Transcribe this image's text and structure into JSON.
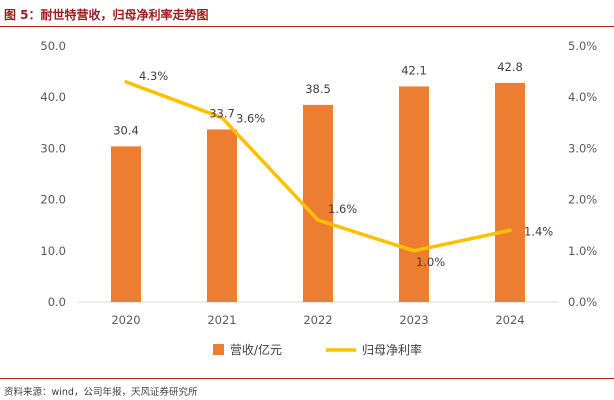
{
  "title": "图 5：耐世特营收，归母净利率走势图",
  "source": "资料来源：wind，公司年报，天风证券研究所",
  "colors": {
    "bar": "#ED7D31",
    "line": "#FFC000",
    "title": "#9B1C1C",
    "rule": "#B22222"
  },
  "chart_data": {
    "type": "bar",
    "categories": [
      "2020",
      "2021",
      "2022",
      "2023",
      "2024"
    ],
    "series": [
      {
        "name": "营收/亿元",
        "type": "bar",
        "axis": "left",
        "values": [
          30.4,
          33.7,
          38.5,
          42.1,
          42.8
        ],
        "labels": [
          "30.4",
          "33.7",
          "38.5",
          "42.1",
          "42.8"
        ]
      },
      {
        "name": "归母净利率",
        "type": "line",
        "axis": "right",
        "values": [
          4.3,
          3.6,
          1.6,
          1.0,
          1.4
        ],
        "labels": [
          "4.3%",
          "3.6%",
          "1.6%",
          "1.0%",
          "1.4%"
        ]
      }
    ],
    "y_left": {
      "lim": [
        0,
        50
      ],
      "ticks": [
        "0.0",
        "10.0",
        "20.0",
        "30.0",
        "40.0",
        "50.0"
      ]
    },
    "y_right": {
      "lim": [
        0,
        5
      ],
      "ticks": [
        "0.0%",
        "1.0%",
        "2.0%",
        "3.0%",
        "4.0%",
        "5.0%"
      ]
    },
    "grid": false,
    "legend": "bottom"
  }
}
